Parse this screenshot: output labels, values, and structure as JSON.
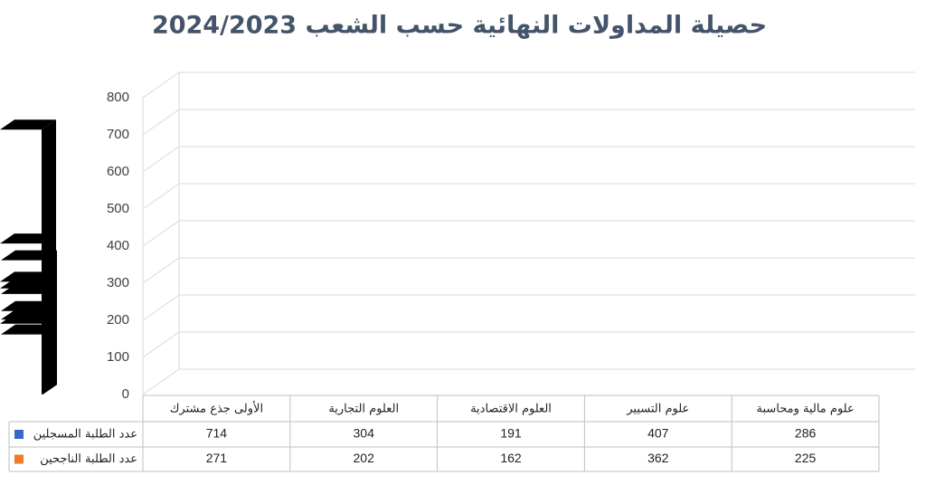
{
  "chart_data": {
    "type": "bar3d",
    "title": "حصيلة المداولات النهائية حسب الشعب 2024/2023",
    "categories": [
      "الأولى جذع مشترك",
      "العلوم التجارية",
      "العلوم الاقتصادية",
      "علوم التسيير",
      "علوم مالية ومحاسبة"
    ],
    "series": [
      {
        "name": "عدد الطلبة المسجلين",
        "color": "#3a68c9",
        "values": [
          714,
          304,
          191,
          407,
          286
        ]
      },
      {
        "name": "عدد الطلبة الناجحين",
        "color": "#ee7b2a",
        "values": [
          271,
          202,
          162,
          362,
          225
        ]
      }
    ],
    "ylim": [
      0,
      800
    ],
    "yticks": [
      0,
      100,
      200,
      300,
      400,
      500,
      600,
      700,
      800
    ],
    "grid": true
  }
}
